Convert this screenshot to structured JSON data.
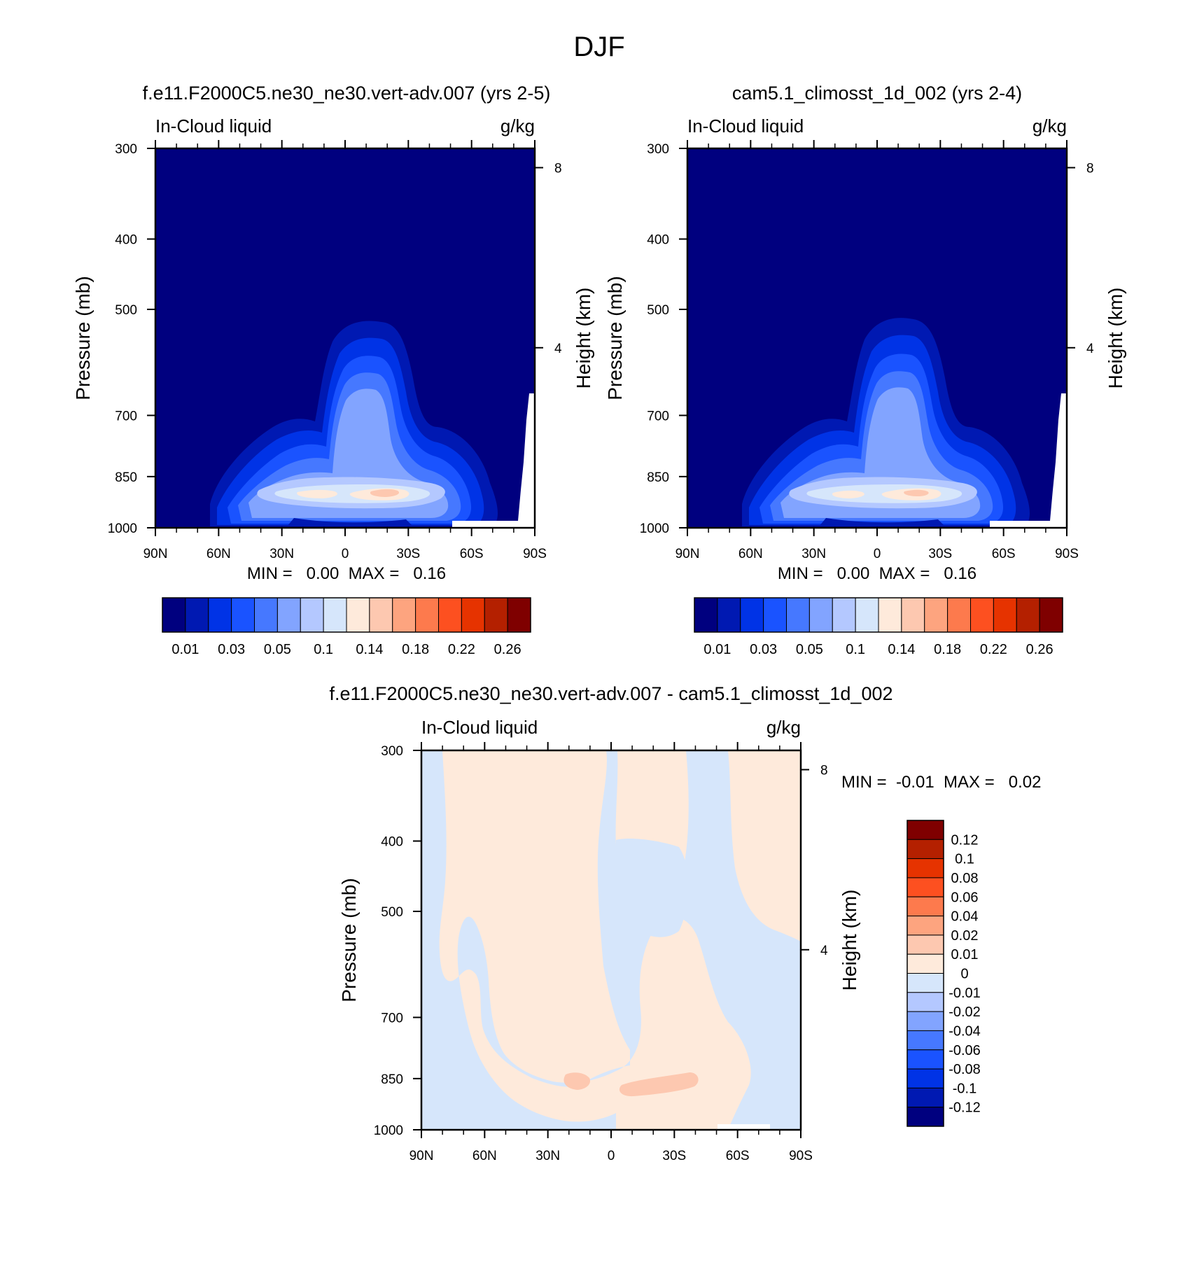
{
  "page_title": "DJF",
  "chart_data": [
    {
      "type": "heatmap",
      "subtype": "filled-contour",
      "title": "f.e11.F2000C5.ne30_ne30.vert-adv.007 (yrs 2-5)",
      "left_label": "In-Cloud liquid",
      "right_label": "g/kg",
      "xlabel": "",
      "ylabel": "Pressure (mb)",
      "y2label": "Height (km)",
      "x_ticks": [
        "90N",
        "60N",
        "30N",
        "0",
        "30S",
        "60S",
        "90S"
      ],
      "xlim": [
        90,
        -90
      ],
      "y_ticks": [
        300,
        400,
        500,
        700,
        850,
        1000
      ],
      "ylim": [
        300,
        1000
      ],
      "y_scale": "log",
      "y2_ticks": [
        8,
        4
      ],
      "stats": "MIN =   0.00  MAX =   0.16",
      "min": 0.0,
      "max": 0.16,
      "levels": [
        0.01,
        0.02,
        0.03,
        0.04,
        0.05,
        0.07,
        0.1,
        0.12,
        0.14,
        0.16,
        0.18,
        0.2,
        0.22,
        0.24,
        0.26
      ],
      "colorbar_labels": [
        "0.01",
        "0.03",
        "0.05",
        "0.1",
        "0.14",
        "0.18",
        "0.22",
        "0.26"
      ],
      "colorbar_orientation": "horizontal",
      "peak": {
        "lat": -22,
        "pressure": 870,
        "value": 0.16
      }
    },
    {
      "type": "heatmap",
      "subtype": "filled-contour",
      "title": "cam5.1_climosst_1d_002 (yrs 2-4)",
      "left_label": "In-Cloud liquid",
      "right_label": "g/kg",
      "xlabel": "",
      "ylabel": "Pressure (mb)",
      "y2label": "Height (km)",
      "x_ticks": [
        "90N",
        "60N",
        "30N",
        "0",
        "30S",
        "60S",
        "90S"
      ],
      "xlim": [
        90,
        -90
      ],
      "y_ticks": [
        300,
        400,
        500,
        700,
        850,
        1000
      ],
      "ylim": [
        300,
        1000
      ],
      "y_scale": "log",
      "y2_ticks": [
        8,
        4
      ],
      "stats": "MIN =   0.00  MAX =   0.16",
      "min": 0.0,
      "max": 0.16,
      "levels": [
        0.01,
        0.02,
        0.03,
        0.04,
        0.05,
        0.07,
        0.1,
        0.12,
        0.14,
        0.16,
        0.18,
        0.2,
        0.22,
        0.24,
        0.26
      ],
      "colorbar_labels": [
        "0.01",
        "0.03",
        "0.05",
        "0.1",
        "0.14",
        "0.18",
        "0.22",
        "0.26"
      ],
      "colorbar_orientation": "horizontal",
      "peak": {
        "lat": -20,
        "pressure": 870,
        "value": 0.16
      }
    },
    {
      "type": "heatmap",
      "subtype": "filled-contour",
      "title": "f.e11.F2000C5.ne30_ne30.vert-adv.007 - cam5.1_climosst_1d_002",
      "left_label": "In-Cloud liquid",
      "right_label": "g/kg",
      "xlabel": "",
      "ylabel": "Pressure (mb)",
      "y2label": "Height (km)",
      "x_ticks": [
        "90N",
        "60N",
        "30N",
        "0",
        "30S",
        "60S",
        "90S"
      ],
      "xlim": [
        90,
        -90
      ],
      "y_ticks": [
        300,
        400,
        500,
        700,
        850,
        1000
      ],
      "ylim": [
        300,
        1000
      ],
      "y_scale": "log",
      "y2_ticks": [
        8,
        4
      ],
      "stats": "MIN =  -0.01  MAX =   0.02",
      "min": -0.01,
      "max": 0.02,
      "levels": [
        -0.12,
        -0.1,
        -0.08,
        -0.06,
        -0.04,
        -0.02,
        -0.01,
        0,
        0.01,
        0.02,
        0.04,
        0.06,
        0.08,
        0.1,
        0.12
      ],
      "colorbar_labels": [
        "0.12",
        "0.1",
        "0.08",
        "0.06",
        "0.04",
        "0.02",
        "0.01",
        "0",
        "-0.01",
        "-0.02",
        "-0.04",
        "-0.06",
        "-0.08",
        "-0.1",
        "-0.12"
      ],
      "colorbar_orientation": "vertical"
    }
  ],
  "palette": [
    "#00007f",
    "#0019b2",
    "#0033e6",
    "#1a53ff",
    "#4678ff",
    "#82a4ff",
    "#b4c8ff",
    "#d6e6fb",
    "#feeadb",
    "#fdc8b0",
    "#fda47f",
    "#fd7a4d",
    "#fd5020",
    "#e63300",
    "#b42000",
    "#7f0000"
  ]
}
